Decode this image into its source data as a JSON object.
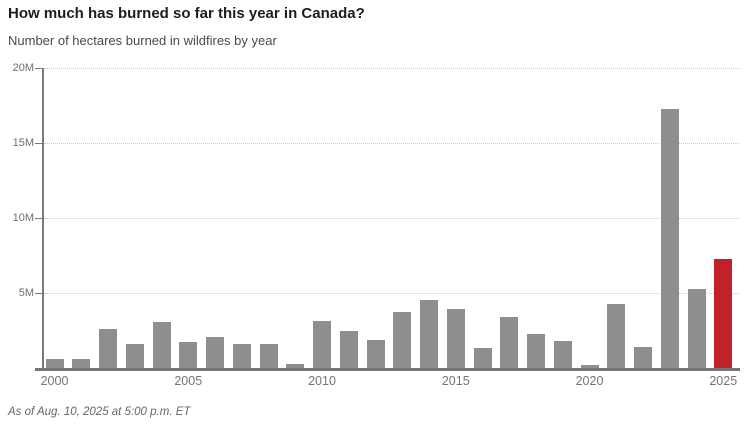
{
  "chart_data": {
    "type": "bar",
    "title": "How much has burned so far this year in Canada?",
    "subtitle": "Number of hectares burned in wildfires by year",
    "footnote": "As of Aug. 10, 2025 at 5:00 p.m. ET",
    "unit": "hectares (millions)",
    "categories": [
      2000,
      2001,
      2002,
      2003,
      2004,
      2005,
      2006,
      2007,
      2008,
      2009,
      2010,
      2011,
      2012,
      2013,
      2014,
      2015,
      2016,
      2017,
      2018,
      2019,
      2020,
      2021,
      2022,
      2023,
      2024,
      2025
    ],
    "values": [
      0.6,
      0.6,
      2.6,
      1.6,
      3.1,
      1.75,
      2.05,
      1.6,
      1.6,
      0.25,
      3.15,
      2.5,
      1.9,
      3.75,
      4.55,
      3.95,
      1.35,
      3.4,
      2.25,
      1.8,
      0.2,
      4.25,
      1.4,
      17.3,
      5.3,
      7.3
    ],
    "highlight_index": 25,
    "highlight_year": 2025,
    "ylim": [
      0,
      20
    ],
    "yticks": [
      {
        "value": 20,
        "label": "20M"
      },
      {
        "value": 15,
        "label": "15M"
      },
      {
        "value": 10,
        "label": "10M"
      },
      {
        "value": 5,
        "label": "5M"
      }
    ],
    "xtick_labels": [
      "2000",
      "2005",
      "2010",
      "2015",
      "2020",
      "2025"
    ],
    "xtick_years": [
      2000,
      2005,
      2010,
      2015,
      2020,
      2025
    ],
    "grid": "horizontal-dotted",
    "legend": "none",
    "colors": {
      "bar": "#8e8e8e",
      "highlight": "#c2212a",
      "axis": "#757575",
      "gridline": "#c9c9c9",
      "title_text": "#1d1d1d",
      "subtitle_text": "#4a4a4a",
      "tick_text": "#6e6e6e"
    }
  }
}
